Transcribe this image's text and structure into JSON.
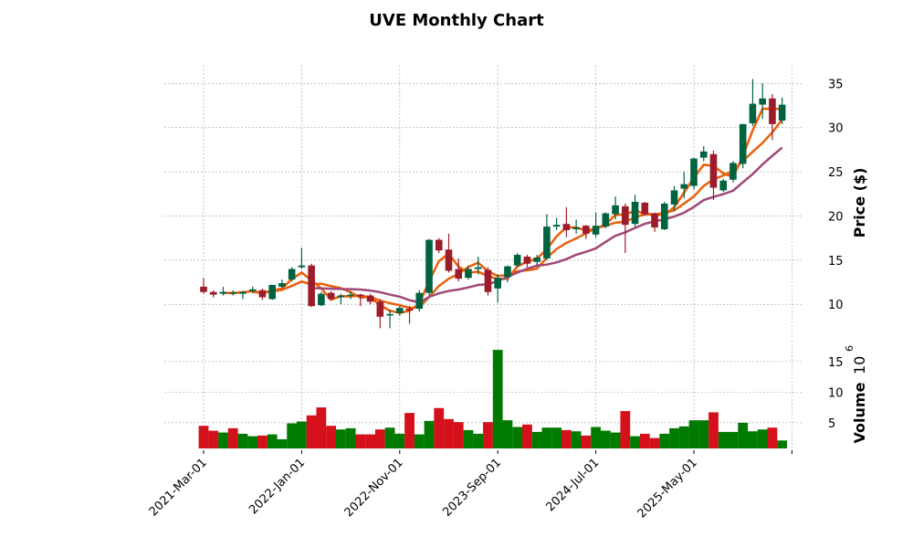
{
  "chart_data": {
    "type": "candlestick",
    "title": "UVE Monthly Chart",
    "price_ylabel": "Price ($)",
    "volume_ylabel": "Volume",
    "volume_multiplier": "10",
    "volume_exponent": "6",
    "price_ylim": [
      6.2,
      37
    ],
    "price_yticks": [
      10,
      15,
      20,
      25,
      30,
      35
    ],
    "volume_ylim": [
      0.8,
      18.4
    ],
    "volume_yticks": [
      5,
      10,
      15
    ],
    "xtick_indices": [
      0,
      10,
      20,
      30,
      40,
      50,
      60
    ],
    "xtick_labels": [
      "2021-Mar-01",
      "2022-Jan-01",
      "2022-Nov-01",
      "2023-Sep-01",
      "2024-Jul-01",
      "2025-May-01",
      ""
    ],
    "grid": true,
    "moving_averages": [
      3,
      6,
      12
    ],
    "colors": {
      "up": "#006340",
      "down": "#9b1c2a",
      "vol_up": "#007a00",
      "vol_down": "#d4101a",
      "mav": [
        "#f25c05",
        "#e8600f",
        "#a04878"
      ]
    },
    "ohlc": [
      [
        12.0,
        13.0,
        11.2,
        11.4
      ],
      [
        11.4,
        11.6,
        10.8,
        11.1
      ],
      [
        11.2,
        12.0,
        11.0,
        11.4
      ],
      [
        11.3,
        11.6,
        11.0,
        11.35
      ],
      [
        11.2,
        11.5,
        10.6,
        11.4
      ],
      [
        11.5,
        12.0,
        11.3,
        11.7
      ],
      [
        11.6,
        11.8,
        10.5,
        10.8
      ],
      [
        10.6,
        12.2,
        10.5,
        12.2
      ],
      [
        12.0,
        12.8,
        11.8,
        12.4
      ],
      [
        12.8,
        14.2,
        12.6,
        14.0
      ],
      [
        14.2,
        16.4,
        14.0,
        14.4
      ],
      [
        14.4,
        14.6,
        9.7,
        9.8
      ],
      [
        9.9,
        11.4,
        9.8,
        11.2
      ],
      [
        11.3,
        11.5,
        10.4,
        10.6
      ],
      [
        10.8,
        11.2,
        10.0,
        11.0
      ],
      [
        11.0,
        11.5,
        10.6,
        11.1
      ],
      [
        11.1,
        11.2,
        9.8,
        10.9
      ],
      [
        11.0,
        11.2,
        10.0,
        10.3
      ],
      [
        10.3,
        10.6,
        7.3,
        8.6
      ],
      [
        8.8,
        9.4,
        7.3,
        8.9
      ],
      [
        9.0,
        9.8,
        8.7,
        9.6
      ],
      [
        9.5,
        9.8,
        7.8,
        9.3
      ],
      [
        9.5,
        11.6,
        9.2,
        11.3
      ],
      [
        11.3,
        17.4,
        11.0,
        17.3
      ],
      [
        17.3,
        17.5,
        15.8,
        16.1
      ],
      [
        16.2,
        18.0,
        13.6,
        13.8
      ],
      [
        14.0,
        15.2,
        12.6,
        12.9
      ],
      [
        13.0,
        14.4,
        12.8,
        14.0
      ],
      [
        14.0,
        15.4,
        13.4,
        14.2
      ],
      [
        13.9,
        14.2,
        11.0,
        11.4
      ],
      [
        11.8,
        13.4,
        10.2,
        13.0
      ],
      [
        13.1,
        14.4,
        12.5,
        14.3
      ],
      [
        14.4,
        15.8,
        14.2,
        15.6
      ],
      [
        15.4,
        15.6,
        14.2,
        14.6
      ],
      [
        14.8,
        15.6,
        14.4,
        15.3
      ],
      [
        15.2,
        20.2,
        15.0,
        18.8
      ],
      [
        18.8,
        19.8,
        18.4,
        19.0
      ],
      [
        19.1,
        21.0,
        17.6,
        18.4
      ],
      [
        18.5,
        19.6,
        18.0,
        18.7
      ],
      [
        18.9,
        19.0,
        17.4,
        18.0
      ],
      [
        17.9,
        20.4,
        17.6,
        18.9
      ],
      [
        18.8,
        20.4,
        18.6,
        20.3
      ],
      [
        20.2,
        22.2,
        19.6,
        21.2
      ],
      [
        21.1,
        21.4,
        15.8,
        19.0
      ],
      [
        19.1,
        22.4,
        18.8,
        21.6
      ],
      [
        21.5,
        21.6,
        20.0,
        20.2
      ],
      [
        20.3,
        20.4,
        18.2,
        18.7
      ],
      [
        18.5,
        21.6,
        18.4,
        21.4
      ],
      [
        21.3,
        23.4,
        20.6,
        22.9
      ],
      [
        23.1,
        25.0,
        22.0,
        23.6
      ],
      [
        23.4,
        26.6,
        23.0,
        26.5
      ],
      [
        26.6,
        27.9,
        26.2,
        27.3
      ],
      [
        27.0,
        27.4,
        21.8,
        23.2
      ],
      [
        22.9,
        24.2,
        22.7,
        24.0
      ],
      [
        24.1,
        26.2,
        23.8,
        26.0
      ],
      [
        25.9,
        30.4,
        25.4,
        30.4
      ],
      [
        30.5,
        35.5,
        30.2,
        32.7
      ],
      [
        32.6,
        35.0,
        31.0,
        33.3
      ],
      [
        33.3,
        33.8,
        28.6,
        30.4
      ],
      [
        30.8,
        33.4,
        30.4,
        32.6
      ]
    ],
    "volume": [
      4.5,
      3.7,
      3.4,
      4.1,
      3.2,
      2.8,
      2.9,
      3.1,
      2.3,
      4.9,
      5.2,
      6.2,
      7.5,
      4.5,
      3.9,
      4.1,
      3.1,
      3.1,
      3.9,
      4.2,
      3.2,
      6.6,
      3.1,
      5.3,
      7.4,
      5.6,
      5.1,
      3.8,
      3.2,
      5.1,
      16.9,
      5.4,
      4.3,
      4.7,
      3.5,
      4.2,
      4.2,
      3.8,
      3.6,
      2.9,
      4.3,
      3.7,
      3.4,
      6.9,
      2.8,
      3.2,
      2.5,
      3.2,
      4.1,
      4.4,
      5.4,
      5.4,
      6.7,
      3.5,
      3.5,
      5.0,
      3.6,
      3.9,
      4.2,
      2.1
    ],
    "volume_up": [
      0,
      0,
      1,
      0,
      1,
      1,
      0,
      1,
      1,
      1,
      1,
      0,
      0,
      0,
      1,
      1,
      0,
      0,
      0,
      1,
      1,
      0,
      1,
      1,
      0,
      0,
      0,
      1,
      1,
      0,
      1,
      1,
      1,
      0,
      1,
      1,
      1,
      0,
      1,
      0,
      1,
      1,
      1,
      0,
      1,
      0,
      0,
      1,
      1,
      1,
      1,
      1,
      0,
      1,
      1,
      1,
      1,
      1,
      0,
      1
    ]
  }
}
